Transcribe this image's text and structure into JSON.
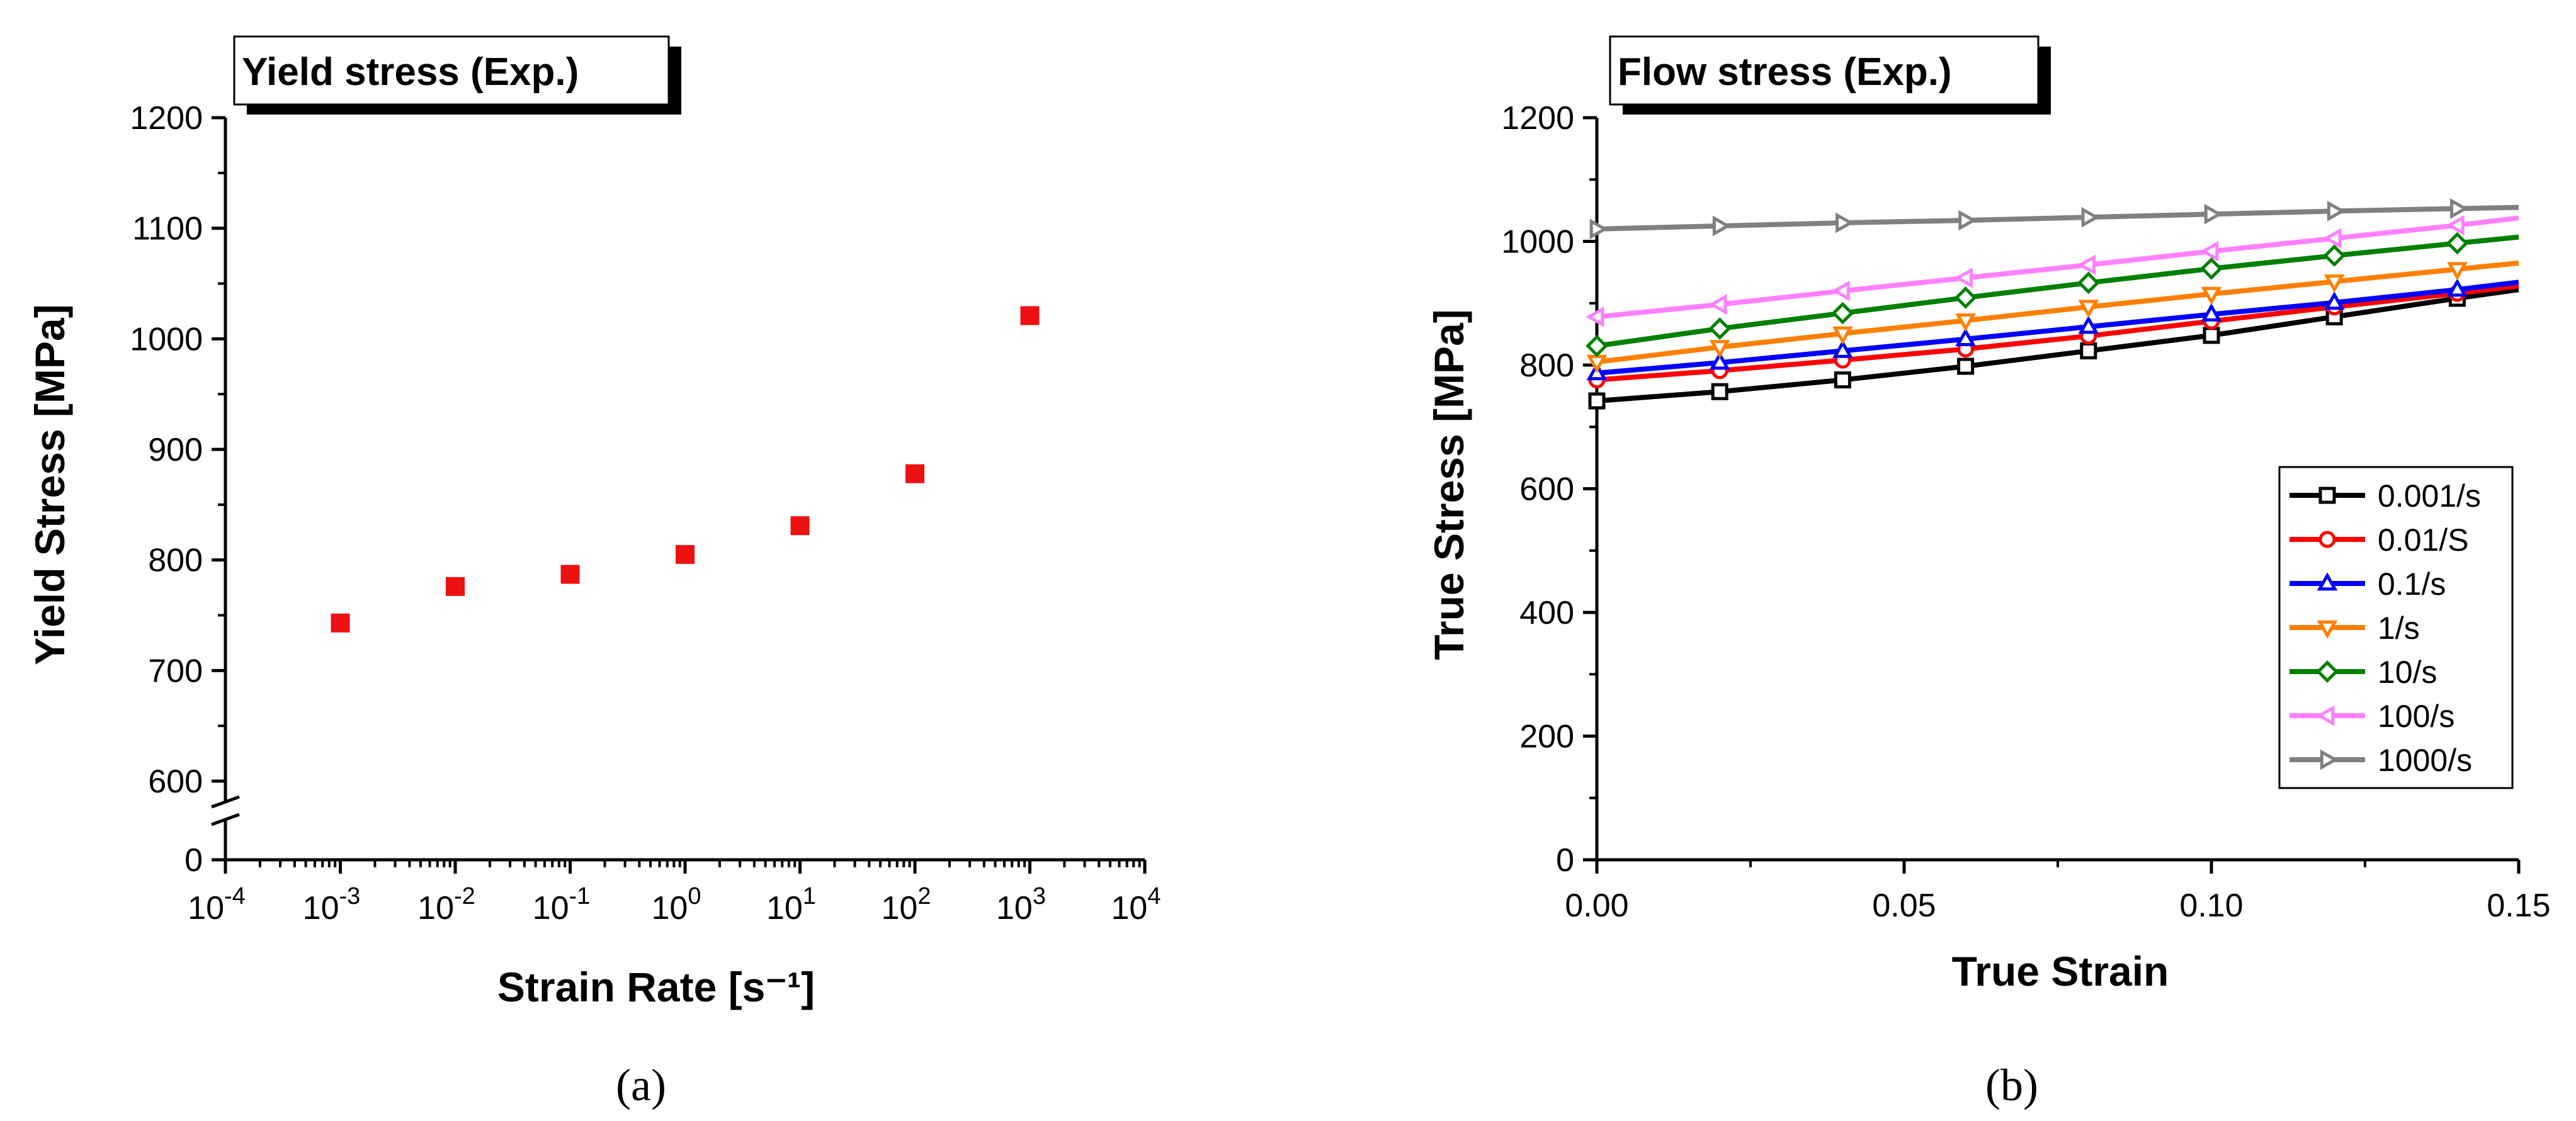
{
  "chart_data": [
    {
      "type": "scatter",
      "title": "Yield stress (Exp.)",
      "xlabel": "Strain Rate [s⁻¹]",
      "ylabel": "Yield Stress [MPa]",
      "xscale": "log",
      "xlim": [
        0.0001,
        10000
      ],
      "ylim_upper_segment": [
        600,
        1200
      ],
      "ylim_lower_segment": [
        0,
        0
      ],
      "axis_break": true,
      "x_tick_labels": [
        {
          "base": "10",
          "exp": "-4"
        },
        {
          "base": "10",
          "exp": "-3"
        },
        {
          "base": "10",
          "exp": "-2"
        },
        {
          "base": "10",
          "exp": "-1"
        },
        {
          "base": "10",
          "exp": "0"
        },
        {
          "base": "10",
          "exp": "1"
        },
        {
          "base": "10",
          "exp": "2"
        },
        {
          "base": "10",
          "exp": "3"
        },
        {
          "base": "10",
          "exp": "4"
        }
      ],
      "y_tick_labels": [
        "0",
        "600",
        "700",
        "800",
        "900",
        "1000",
        "1100",
        "1200"
      ],
      "marker": "square",
      "color": "#ee1111",
      "points": [
        {
          "x": 0.001,
          "y": 743
        },
        {
          "x": 0.01,
          "y": 776
        },
        {
          "x": 0.1,
          "y": 787
        },
        {
          "x": 1,
          "y": 805
        },
        {
          "x": 10,
          "y": 831
        },
        {
          "x": 100,
          "y": 878
        },
        {
          "x": 1000,
          "y": 1021
        }
      ],
      "caption": "(a)"
    },
    {
      "type": "line",
      "title": "Flow stress (Exp.)",
      "xlabel": "True Strain",
      "ylabel": "True Stress [MPa]",
      "xlim": [
        0,
        0.15
      ],
      "ylim": [
        0,
        1200
      ],
      "x_tick_labels": [
        "0.00",
        "0.05",
        "0.10",
        "0.15"
      ],
      "y_tick_labels": [
        "0",
        "200",
        "400",
        "600",
        "800",
        "1000",
        "1200"
      ],
      "x": [
        0,
        0.02,
        0.04,
        0.06,
        0.08,
        0.1,
        0.12,
        0.14,
        0.15
      ],
      "legend_position": "lower-right",
      "series": [
        {
          "name": "0.001/s",
          "color": "#000000",
          "marker": "square",
          "values": [
            742,
            757,
            776,
            798,
            823,
            848,
            878,
            908,
            922
          ]
        },
        {
          "name": "0.01/S",
          "color": "#ff0000",
          "marker": "circle",
          "values": [
            776,
            791,
            808,
            826,
            847,
            871,
            894,
            916,
            928
          ]
        },
        {
          "name": "0.1/s",
          "color": "#0000ff",
          "marker": "triangle-up",
          "values": [
            787,
            804,
            823,
            842,
            862,
            882,
            901,
            922,
            934
          ]
        },
        {
          "name": "1/s",
          "color": "#ff7f00",
          "marker": "triangle-down",
          "values": [
            805,
            829,
            851,
            872,
            894,
            915,
            935,
            955,
            965
          ]
        },
        {
          "name": "10/s",
          "color": "#008000",
          "marker": "diamond",
          "values": [
            831,
            859,
            884,
            909,
            933,
            956,
            977,
            997,
            1007
          ]
        },
        {
          "name": "100/s",
          "color": "#ff80ff",
          "marker": "triangle-left",
          "values": [
            878,
            898,
            920,
            941,
            962,
            984,
            1005,
            1026,
            1038
          ]
        },
        {
          "name": "1000/s",
          "color": "#808080",
          "marker": "triangle-right",
          "values": [
            1020,
            1025,
            1030,
            1034,
            1039,
            1044,
            1049,
            1053,
            1055
          ]
        }
      ],
      "caption": "(b)"
    }
  ]
}
